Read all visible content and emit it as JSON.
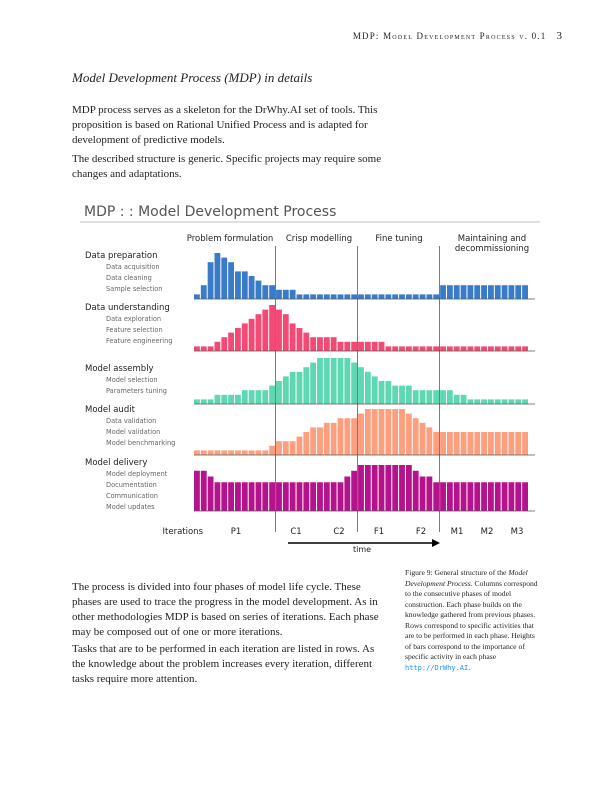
{
  "header": {
    "running_title": "MDP: Model Development Process v. 0.1",
    "page_number": "3"
  },
  "section_title": "Model Development Process (MDP) in details",
  "paragraphs": {
    "p1": "MDP process serves as a skeleton for the DrWhy.AI set of tools. This proposition is based on Rational Unified Process and is adapted for development of predictive models.",
    "p2": "The described structure is generic. Specific projects may require some changes and adaptations.",
    "p3": "The process is divided into four phases of model life cycle. These phases are used to trace the progress in the model development. As in other methodologies MDP is based on series of iterations. Each phase may be composed out of one or more iterations.",
    "p4": "Tasks that are to be performed in each iteration are listed in rows. As the knowledge about the problem increases every iteration, different tasks require more attention."
  },
  "caption": {
    "label": "Figure 9: General structure of the",
    "italic": "Model Development Process.",
    "text": "Columns correspond to the consecutive phases of model construction. Each phase builds on the knowledge gathered from previous phases. Rows correspond to specific activities that are to be performed in each phase. Heights of bars correspond to the importance of specific activity in each phase",
    "url": "http://DrWhy.AI",
    "end": "."
  },
  "chart_data": {
    "type": "bar",
    "title": "MDP : : Model Development Process",
    "phases": [
      "Problem formulation",
      "Crisp modelling",
      "Fine tuning",
      "Maintaining and decommissioning"
    ],
    "x_axis_title": "Iterations",
    "iteration_labels": [
      "P1",
      "C1",
      "C2",
      "F1",
      "F2",
      "M1",
      "M2",
      "M3"
    ],
    "time_label": "time",
    "xlabel": "",
    "ylabel": "",
    "n_columns": 49,
    "rows": [
      {
        "name": "Data preparation",
        "color": "#3a7bc8",
        "tasks": [
          "Data acquisition",
          "Data cleaning",
          "Sample selection"
        ],
        "values": [
          1,
          3,
          8,
          10,
          9,
          8,
          6,
          6,
          5,
          4,
          3,
          3,
          2,
          2,
          2,
          1,
          1,
          1,
          1,
          1,
          1,
          1,
          1,
          1,
          1,
          1,
          1,
          1,
          1,
          1,
          1,
          1,
          1,
          1,
          1,
          1,
          3,
          3,
          3,
          3,
          3,
          3,
          3,
          3,
          3,
          3,
          3,
          3,
          3
        ]
      },
      {
        "name": "Data understanding",
        "color": "#f24a75",
        "tasks": [
          "Data exploration",
          "Feature selection",
          "Feature engineering"
        ],
        "values": [
          1,
          1,
          1,
          2,
          3,
          4,
          5,
          6,
          7,
          8,
          9,
          10,
          9,
          8,
          6,
          5,
          4,
          3,
          3,
          3,
          3,
          2,
          2,
          2,
          2,
          2,
          2,
          2,
          1,
          1,
          1,
          1,
          1,
          1,
          1,
          1,
          1,
          1,
          1,
          1,
          1,
          1,
          1,
          1,
          1,
          1,
          1,
          1,
          1
        ]
      },
      {
        "name": "Model assembly",
        "color": "#5ed8b2",
        "tasks": [
          "Model selection",
          "Parameters tuning"
        ],
        "values": [
          1,
          1,
          1,
          2,
          2,
          2,
          2,
          3,
          3,
          3,
          3,
          4,
          5,
          6,
          7,
          7,
          8,
          9,
          10,
          10,
          10,
          10,
          10,
          9,
          8,
          7,
          6,
          5,
          5,
          4,
          4,
          4,
          3,
          3,
          3,
          3,
          3,
          3,
          2,
          2,
          1,
          1,
          1,
          1,
          1,
          1,
          1,
          1,
          1
        ]
      },
      {
        "name": "Model audit",
        "color": "#fb9f7e",
        "tasks": [
          "Data validation",
          "Model validation",
          "Model benchmarking"
        ],
        "values": [
          1,
          1,
          1,
          1,
          1,
          1,
          1,
          1,
          1,
          1,
          1,
          2,
          3,
          3,
          3,
          4,
          5,
          6,
          6,
          7,
          7,
          8,
          8,
          8,
          9,
          10,
          10,
          10,
          10,
          10,
          10,
          9,
          8,
          7,
          6,
          5,
          5,
          5,
          5,
          5,
          5,
          5,
          5,
          5,
          5,
          5,
          5,
          5,
          5
        ]
      },
      {
        "name": "Model delivery",
        "color": "#b5138c",
        "tasks": [
          "Model deployment",
          "Documentation",
          "Communication",
          "Model updates"
        ],
        "values": [
          7,
          7,
          6,
          5,
          5,
          5,
          5,
          5,
          5,
          5,
          5,
          5,
          5,
          5,
          5,
          5,
          5,
          5,
          5,
          5,
          5,
          5,
          6,
          7,
          8,
          8,
          8,
          8,
          8,
          8,
          8,
          8,
          7,
          6,
          6,
          5,
          5,
          5,
          5,
          5,
          5,
          5,
          5,
          5,
          5,
          5,
          5,
          5,
          5
        ]
      }
    ]
  }
}
